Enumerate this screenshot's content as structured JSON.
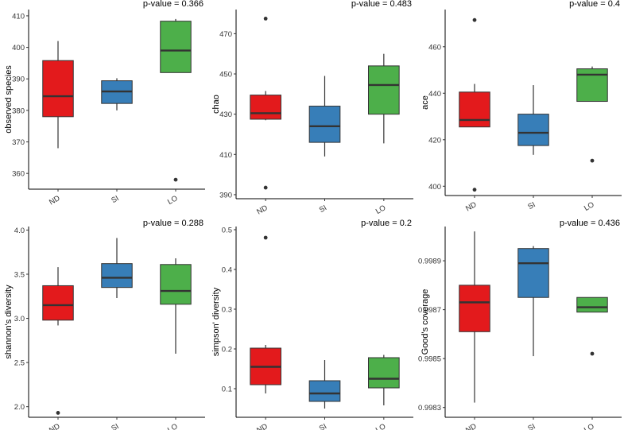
{
  "colors": {
    "ND": "#E31A1C",
    "SI": "#377EB8",
    "LO": "#4DAF4A",
    "line": "#333333",
    "outlier": "#333333"
  },
  "chart_data": [
    {
      "type": "boxplot",
      "title": "p-value = 0.366",
      "ylabel": "observed species",
      "categories": [
        "ND",
        "SI",
        "LO"
      ],
      "ylim": [
        355,
        412
      ],
      "yticks": [
        360,
        370,
        380,
        390,
        400,
        410
      ],
      "tick_labels": [
        "360",
        "370",
        "380",
        "390",
        "400",
        "410"
      ],
      "boxes": [
        {
          "group": "ND",
          "whisker_low": 368,
          "q1": 378,
          "median": 384.5,
          "q3": 395.8,
          "whisker_high": 402,
          "outliers": []
        },
        {
          "group": "SI",
          "whisker_low": 380,
          "q1": 382.2,
          "median": 386,
          "q3": 389.4,
          "whisker_high": 390.2,
          "outliers": []
        },
        {
          "group": "LO",
          "whisker_low": 392,
          "q1": 392,
          "median": 399,
          "q3": 408.3,
          "whisker_high": 409,
          "outliers": [
            358
          ]
        }
      ]
    },
    {
      "type": "boxplot",
      "title": "p-value = 0.483",
      "ylabel": "chao",
      "categories": [
        "ND",
        "SI",
        "LO"
      ],
      "ylim": [
        388,
        482
      ],
      "yticks": [
        390,
        410,
        430,
        450,
        470
      ],
      "tick_labels": [
        "390",
        "410",
        "430",
        "450",
        "470"
      ],
      "boxes": [
        {
          "group": "ND",
          "whisker_low": 427,
          "q1": 427.5,
          "median": 430.5,
          "q3": 439.5,
          "whisker_high": 441.5,
          "outliers": [
            477.5,
            393.5
          ]
        },
        {
          "group": "SI",
          "whisker_low": 409,
          "q1": 416,
          "median": 424,
          "q3": 434,
          "whisker_high": 449,
          "outliers": []
        },
        {
          "group": "LO",
          "whisker_low": 415.5,
          "q1": 430,
          "median": 444.5,
          "q3": 454,
          "whisker_high": 460,
          "outliers": []
        }
      ]
    },
    {
      "type": "boxplot",
      "title": "p-value = 0.4",
      "ylabel": "ace",
      "categories": [
        "ND",
        "SI",
        "LO"
      ],
      "ylim": [
        396,
        476
      ],
      "yticks": [
        400,
        420,
        440,
        460
      ],
      "tick_labels": [
        "400",
        "420",
        "440",
        "460"
      ],
      "boxes": [
        {
          "group": "ND",
          "whisker_low": 425.5,
          "q1": 425.5,
          "median": 428.5,
          "q3": 440.5,
          "whisker_high": 444,
          "outliers": [
            471.5,
            398.5
          ]
        },
        {
          "group": "SI",
          "whisker_low": 413.5,
          "q1": 417.5,
          "median": 423,
          "q3": 431,
          "whisker_high": 443.5,
          "outliers": []
        },
        {
          "group": "LO",
          "whisker_low": 436.5,
          "q1": 436.5,
          "median": 448,
          "q3": 450.5,
          "whisker_high": 451.5,
          "outliers": [
            411
          ]
        }
      ]
    },
    {
      "type": "boxplot",
      "title": "p-value = 0.288",
      "ylabel": "shannon's diversity",
      "categories": [
        "ND",
        "SI",
        "LO"
      ],
      "ylim": [
        1.88,
        4.04
      ],
      "yticks": [
        2.0,
        2.5,
        3.0,
        3.5,
        4.0
      ],
      "tick_labels": [
        "2.0",
        "2.5",
        "3.0",
        "3.5",
        "4.0"
      ],
      "boxes": [
        {
          "group": "ND",
          "whisker_low": 2.92,
          "q1": 2.98,
          "median": 3.15,
          "q3": 3.37,
          "whisker_high": 3.58,
          "outliers": [
            1.93
          ]
        },
        {
          "group": "SI",
          "whisker_low": 3.23,
          "q1": 3.35,
          "median": 3.46,
          "q3": 3.62,
          "whisker_high": 3.91,
          "outliers": []
        },
        {
          "group": "LO",
          "whisker_low": 2.6,
          "q1": 3.16,
          "median": 3.31,
          "q3": 3.61,
          "whisker_high": 3.68,
          "outliers": []
        }
      ]
    },
    {
      "type": "boxplot",
      "title": "p-value = 0.2",
      "ylabel": "simpson' diversity",
      "categories": [
        "ND",
        "SI",
        "LO"
      ],
      "ylim": [
        0.028,
        0.508
      ],
      "yticks": [
        0.1,
        0.2,
        0.3,
        0.4,
        0.5
      ],
      "tick_labels": [
        "0.1",
        "0.2",
        "0.3",
        "0.4",
        "0.5"
      ],
      "boxes": [
        {
          "group": "ND",
          "whisker_low": 0.088,
          "q1": 0.11,
          "median": 0.155,
          "q3": 0.202,
          "whisker_high": 0.21,
          "outliers": [
            0.48
          ]
        },
        {
          "group": "SI",
          "whisker_low": 0.05,
          "q1": 0.068,
          "median": 0.088,
          "q3": 0.12,
          "whisker_high": 0.172,
          "outliers": []
        },
        {
          "group": "LO",
          "whisker_low": 0.058,
          "q1": 0.102,
          "median": 0.125,
          "q3": 0.178,
          "whisker_high": 0.185,
          "outliers": []
        }
      ]
    },
    {
      "type": "boxplot",
      "title": "p-value = 0.436",
      "ylabel": "Good's coverage",
      "categories": [
        "ND",
        "SI",
        "LO"
      ],
      "ylim": [
        0.99826,
        0.99904
      ],
      "yticks": [
        0.9983,
        0.9985,
        0.9987,
        0.9989
      ],
      "tick_labels": [
        "0.9983",
        "0.9985",
        "0.9987",
        "0.9989"
      ],
      "boxes": [
        {
          "group": "ND",
          "whisker_low": 0.99832,
          "q1": 0.99861,
          "median": 0.99873,
          "q3": 0.9988,
          "whisker_high": 0.99902,
          "outliers": []
        },
        {
          "group": "SI",
          "whisker_low": 0.99851,
          "q1": 0.99875,
          "median": 0.99889,
          "q3": 0.99895,
          "whisker_high": 0.99896,
          "outliers": []
        },
        {
          "group": "LO",
          "whisker_low": 0.99869,
          "q1": 0.99869,
          "median": 0.99871,
          "q3": 0.99875,
          "whisker_high": 0.99875,
          "outliers": [
            0.99852
          ]
        }
      ]
    }
  ]
}
